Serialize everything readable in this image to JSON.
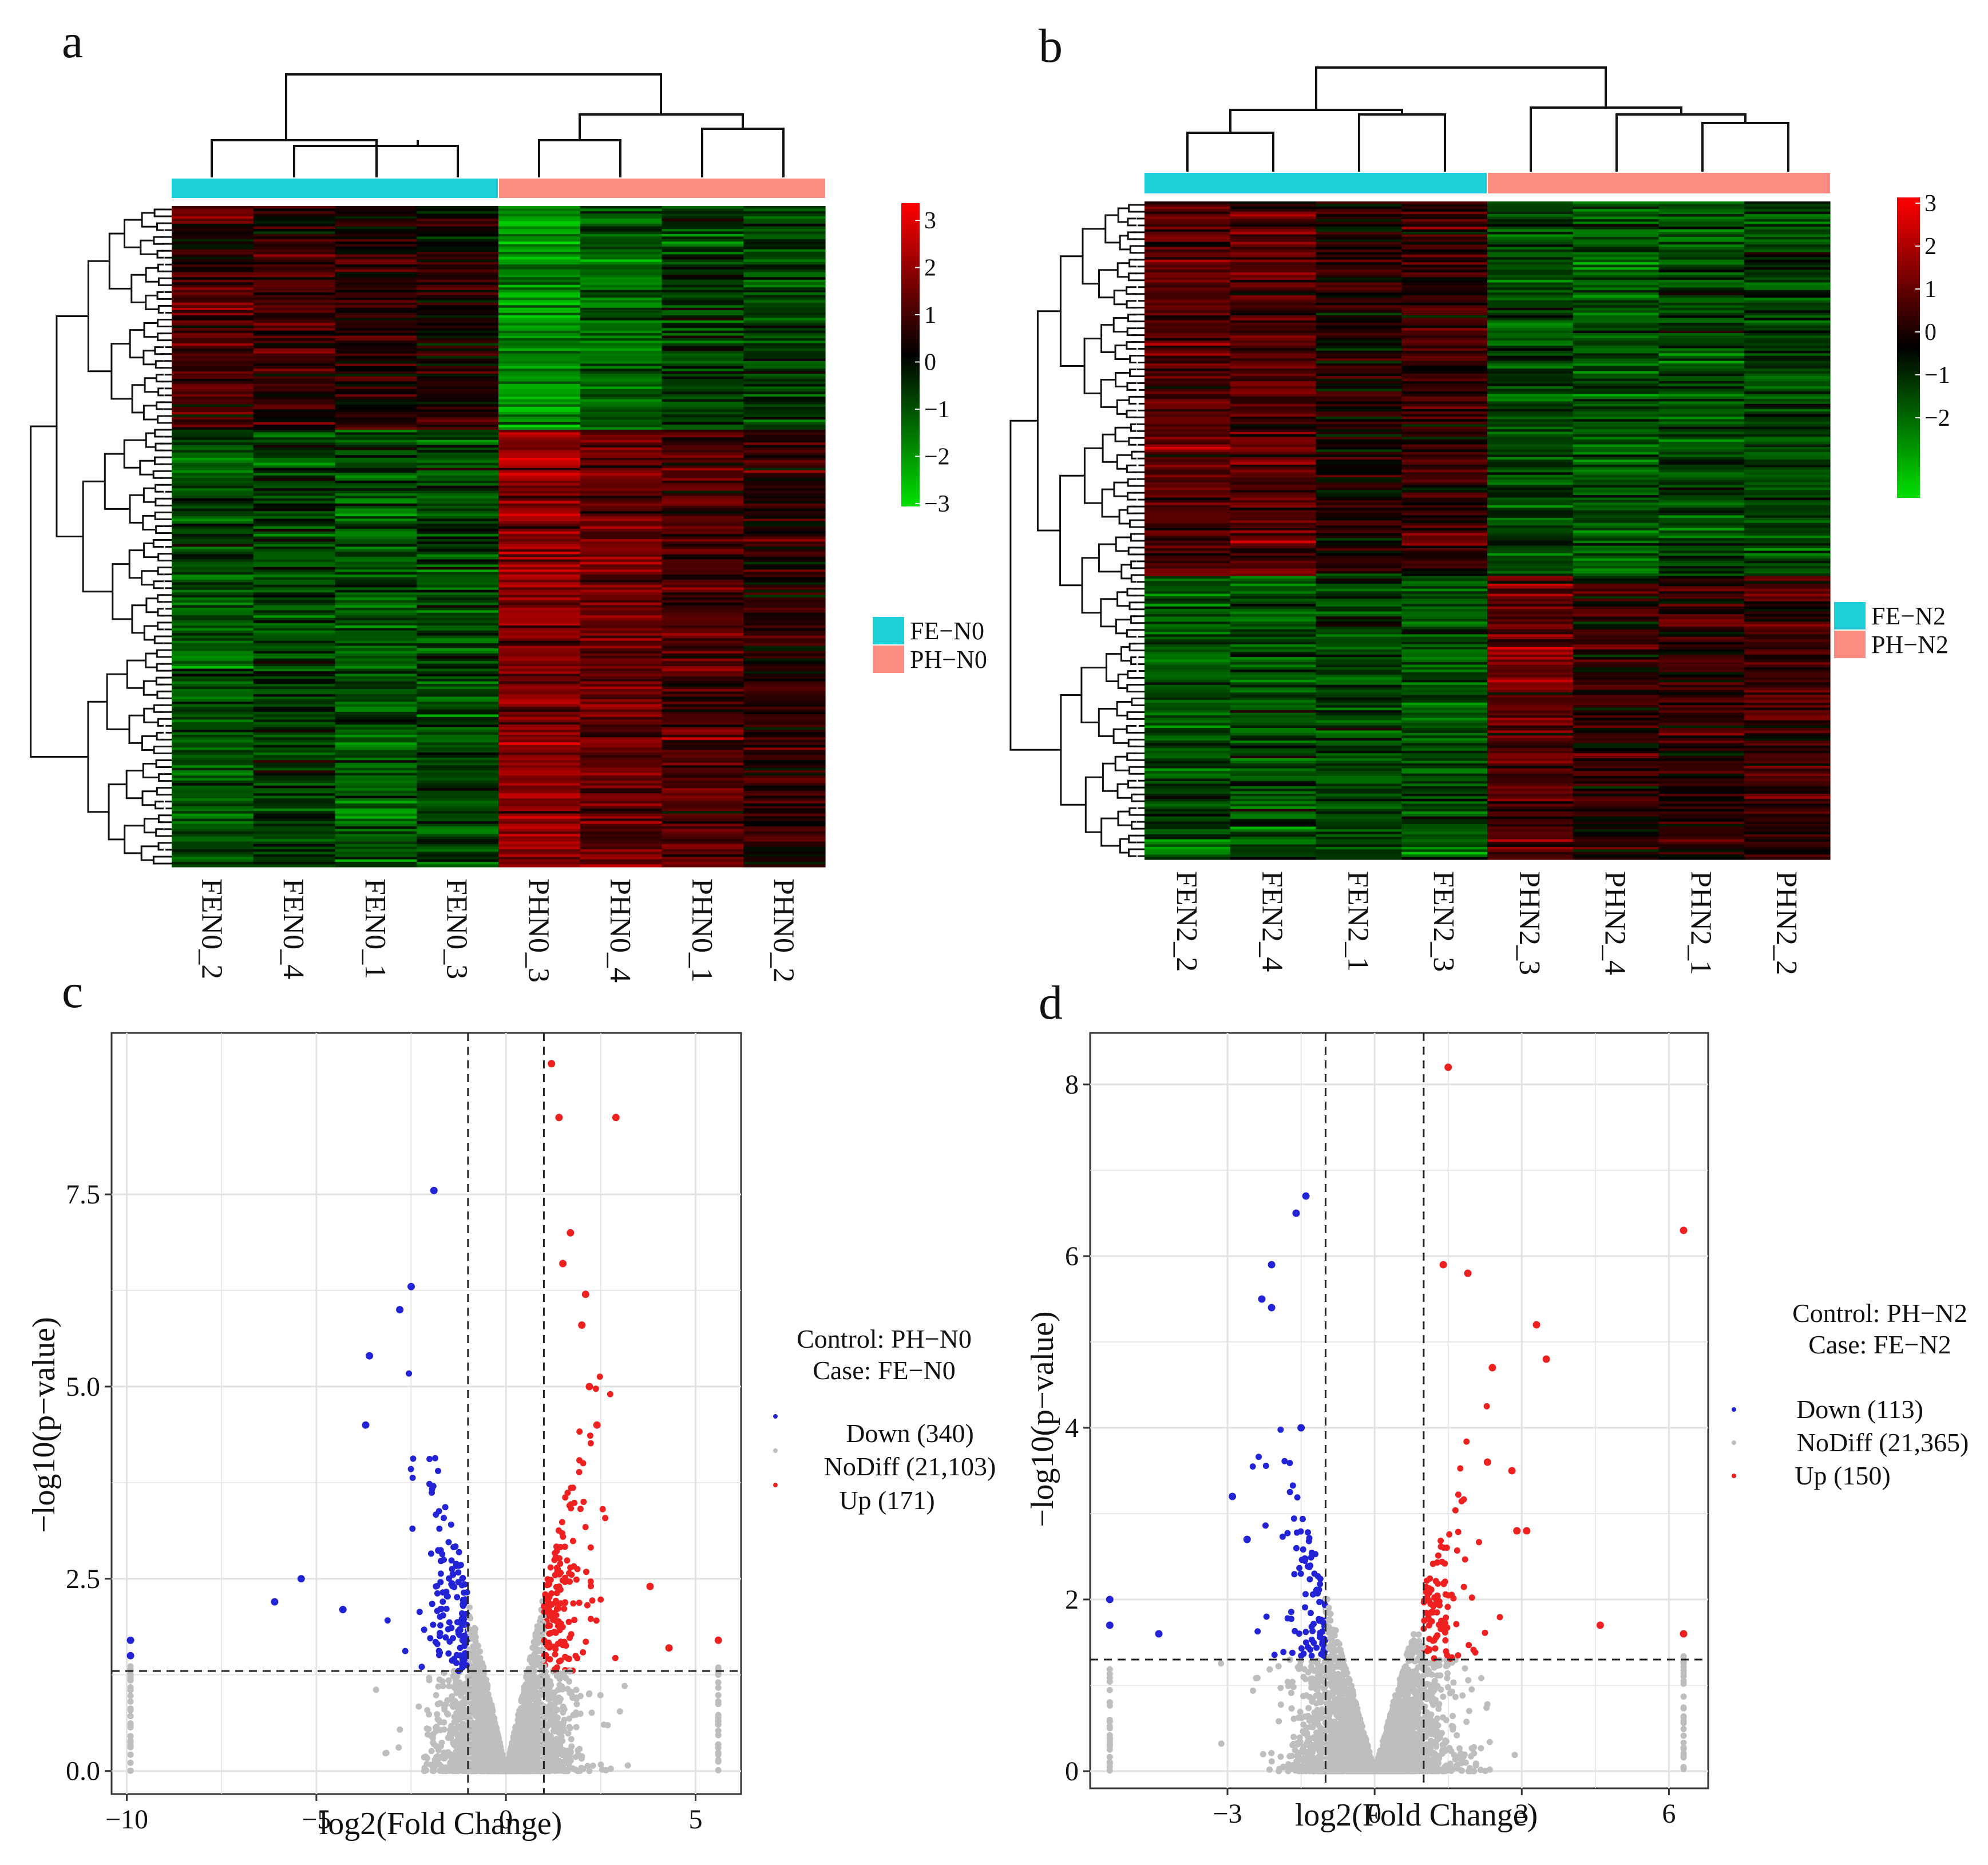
{
  "panel_labels": [
    "a",
    "b",
    "c",
    "d"
  ],
  "colors": {
    "low": "#00e000",
    "mid": "#000000",
    "high": "#ff0000",
    "fe_group": "#1ecfd8",
    "ph_group": "#fa8c82",
    "down": "#2323d6",
    "nodiff": "#bebebe",
    "up": "#ee2020",
    "grid": "#e2e2e2"
  },
  "chart_data": [
    {
      "type": "heatmap",
      "panel": "a",
      "samples": [
        "FEN0_2",
        "FEN0_4",
        "FEN0_1",
        "FEN0_3",
        "PHN0_3",
        "PHN0_4",
        "PHN0_1",
        "PHN0_2"
      ],
      "groups": [
        "FE",
        "FE",
        "FE",
        "FE",
        "PH",
        "PH",
        "PH",
        "PH"
      ],
      "legend": [
        "FE−N0",
        "PH−N0"
      ],
      "colorbar": {
        "min": -3,
        "max": 3,
        "ticks": [
          "3",
          "2",
          "1",
          "0",
          "−1",
          "−2",
          "−3"
        ]
      },
      "row_clusters": [
        {
          "fraction": 0.34,
          "values": [
            0.7,
            0.6,
            0.4,
            0.3,
            -1.9,
            -1.3,
            -0.7,
            -0.8
          ]
        },
        {
          "fraction": 0.66,
          "values": [
            -1.0,
            -0.8,
            -1.1,
            -0.9,
            1.6,
            1.2,
            0.8,
            0.4
          ]
        }
      ]
    },
    {
      "type": "heatmap",
      "panel": "b",
      "samples": [
        "FEN2_2",
        "FEN2_4",
        "FEN2_1",
        "FEN2_3",
        "PHN2_3",
        "PHN2_4",
        "PHN2_1",
        "PHN2_2"
      ],
      "groups": [
        "FE",
        "FE",
        "FE",
        "FE",
        "PH",
        "PH",
        "PH",
        "PH"
      ],
      "legend": [
        "FE−N2",
        "PH−N2"
      ],
      "colorbar": {
        "min": -3,
        "max": 3,
        "ticks": [
          "3",
          "2",
          "1",
          "0",
          "−1",
          "−2"
        ]
      },
      "row_clusters": [
        {
          "fraction": 0.57,
          "values": [
            1.0,
            1.0,
            0.2,
            0.6,
            -1.0,
            -1.1,
            -1.0,
            -0.9
          ]
        },
        {
          "fraction": 0.43,
          "values": [
            -1.0,
            -1.0,
            -0.9,
            -1.1,
            1.0,
            0.5,
            0.5,
            0.6
          ]
        }
      ]
    },
    {
      "type": "scatter",
      "panel": "c",
      "xlabel": "log2(Fold Change)",
      "ylabel": "−log10(p−value)",
      "xlim": [
        -10.4,
        6.2
      ],
      "ylim": [
        -0.3,
        9.6
      ],
      "xticks": [
        -10,
        -5,
        0,
        5
      ],
      "xtick_labels": [
        "−10",
        "−5",
        "0",
        "5"
      ],
      "yticks": [
        0.0,
        2.5,
        5.0,
        7.5
      ],
      "ytick_labels": [
        "0.0",
        "2.5",
        "5.0",
        "7.5"
      ],
      "fc_threshold": 1,
      "p_threshold": 1.3,
      "control_label": "Control: PH−N0",
      "case_label": "Case:    FE−N0",
      "legend": [
        {
          "key": "down",
          "label": "Down (340)",
          "count": 340
        },
        {
          "key": "nodiff",
          "label": "NoDiff (21,103)",
          "count": 21103
        },
        {
          "key": "up",
          "label": "Up (171)",
          "count": 171
        }
      ],
      "highlight_points": {
        "down": [
          [
            -1.9,
            7.55
          ],
          [
            -2.5,
            6.3
          ],
          [
            -2.8,
            6.0
          ],
          [
            -3.6,
            5.4
          ],
          [
            -3.7,
            4.5
          ],
          [
            -4.3,
            2.1
          ],
          [
            -5.4,
            2.5
          ],
          [
            -6.1,
            2.2
          ],
          [
            -9.9,
            1.7
          ],
          [
            -9.9,
            1.5
          ]
        ],
        "up": [
          [
            1.2,
            9.2
          ],
          [
            2.9,
            8.5
          ],
          [
            1.4,
            8.5
          ],
          [
            1.7,
            7.0
          ],
          [
            1.5,
            6.6
          ],
          [
            2.1,
            6.2
          ],
          [
            2.0,
            5.8
          ],
          [
            2.2,
            5.0
          ],
          [
            2.4,
            4.5
          ],
          [
            3.8,
            2.4
          ],
          [
            4.3,
            1.6
          ],
          [
            5.6,
            1.7
          ]
        ]
      }
    },
    {
      "type": "scatter",
      "panel": "d",
      "xlabel": "log2(Fold Change)",
      "ylabel": "−log10(p−value)",
      "xlim": [
        -5.8,
        6.8
      ],
      "ylim": [
        -0.2,
        8.6
      ],
      "xticks": [
        -3,
        0,
        3,
        6
      ],
      "xtick_labels": [
        "−3",
        "0",
        "3",
        "6"
      ],
      "yticks": [
        0,
        2,
        4,
        6,
        8
      ],
      "ytick_labels": [
        "0",
        "2",
        "4",
        "6",
        "8"
      ],
      "fc_threshold": 1,
      "p_threshold": 1.3,
      "control_label": "Control: PH−N2",
      "case_label": "Case:    FE−N2",
      "legend": [
        {
          "key": "down",
          "label": "Down (113)",
          "count": 113
        },
        {
          "key": "nodiff",
          "label": "NoDiff (21,365)",
          "count": 21365
        },
        {
          "key": "up",
          "label": "Up (150)",
          "count": 150
        }
      ],
      "highlight_points": {
        "down": [
          [
            -1.4,
            6.7
          ],
          [
            -1.6,
            6.5
          ],
          [
            -2.1,
            5.9
          ],
          [
            -2.3,
            5.5
          ],
          [
            -2.1,
            5.4
          ],
          [
            -1.5,
            4.0
          ],
          [
            -2.9,
            3.2
          ],
          [
            -2.6,
            2.7
          ],
          [
            -4.4,
            1.6
          ],
          [
            -5.4,
            2.0
          ],
          [
            -5.4,
            1.7
          ]
        ],
        "up": [
          [
            1.5,
            8.2
          ],
          [
            1.4,
            5.9
          ],
          [
            1.9,
            5.8
          ],
          [
            3.3,
            5.2
          ],
          [
            3.5,
            4.8
          ],
          [
            2.4,
            4.7
          ],
          [
            2.3,
            3.6
          ],
          [
            2.8,
            3.5
          ],
          [
            2.9,
            2.8
          ],
          [
            3.1,
            2.8
          ],
          [
            4.6,
            1.7
          ],
          [
            6.3,
            6.3
          ],
          [
            6.3,
            1.6
          ]
        ]
      }
    }
  ]
}
